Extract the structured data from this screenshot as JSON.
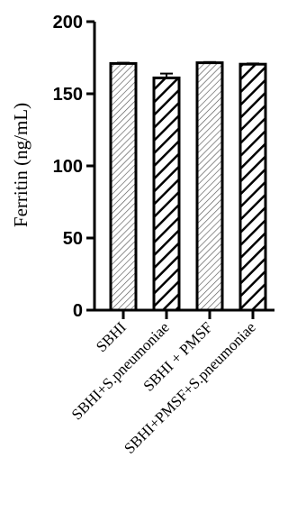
{
  "chart_data": {
    "type": "bar",
    "title": "",
    "xlabel": "",
    "ylabel": "Ferritin (ng/mL)",
    "ylim": [
      0,
      200
    ],
    "yticks": [
      0,
      50,
      100,
      150,
      200
    ],
    "categories": [
      "SBHI",
      "SBHI+S.pneumoniae",
      "SBHI + PMSF",
      "SBHI+PMSF+S.pneumoniae"
    ],
    "values": [
      171,
      161,
      171.5,
      170.5
    ],
    "error": [
      0.5,
      3,
      0.5,
      0.5
    ],
    "patterns": [
      "fine-hatch",
      "bold-hatch",
      "fine-hatch",
      "bold-hatch"
    ],
    "grid": false,
    "legend": "none"
  }
}
